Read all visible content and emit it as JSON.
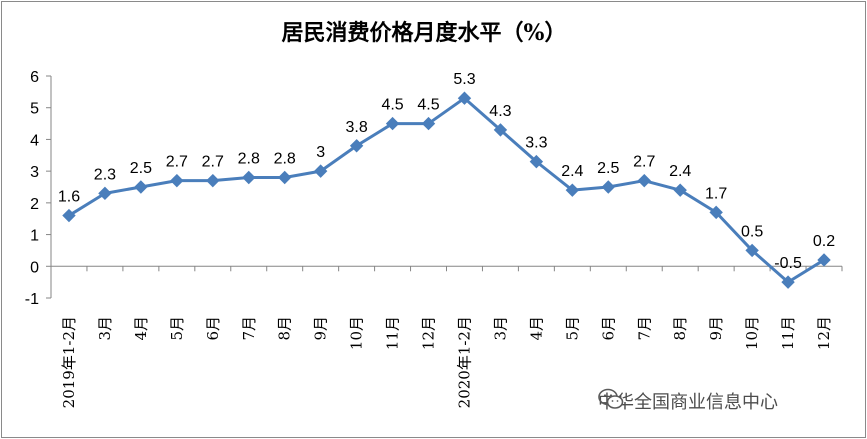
{
  "chart_data": {
    "type": "line",
    "title": "居民消费价格月度水平（%）",
    "categories": [
      "2019年1-2月",
      "3月",
      "4月",
      "5月",
      "6月",
      "7月",
      "8月",
      "9月",
      "10月",
      "11月",
      "12月",
      "2020年1-2月",
      "3月",
      "4月",
      "5月",
      "6月",
      "7月",
      "8月",
      "9月",
      "10月",
      "11月",
      "12月"
    ],
    "values": [
      1.6,
      2.3,
      2.5,
      2.7,
      2.7,
      2.8,
      2.8,
      3,
      3.8,
      4.5,
      4.5,
      5.3,
      4.3,
      3.3,
      2.4,
      2.5,
      2.7,
      2.4,
      1.7,
      0.5,
      -0.5,
      0.2
    ],
    "data_labels": [
      "1.6",
      "2.3",
      "2.5",
      "2.7",
      "2.7",
      "2.8",
      "2.8",
      "3",
      "3.8",
      "4.5",
      "4.5",
      "5.3",
      "4.3",
      "3.3",
      "2.4",
      "2.5",
      "2.7",
      "2.4",
      "1.7",
      "0.5",
      "-0.5",
      "0.2"
    ],
    "ylim": [
      -1,
      6
    ],
    "yticks": [
      "-1",
      "0",
      "1",
      "2",
      "3",
      "4",
      "5",
      "6"
    ],
    "xlabel": "",
    "ylabel": "",
    "grid": false,
    "legend": "none",
    "line_color": "#4a7ebb"
  },
  "watermark": {
    "icon": "wechat-icon",
    "text": "中华全国商业信息中心"
  }
}
